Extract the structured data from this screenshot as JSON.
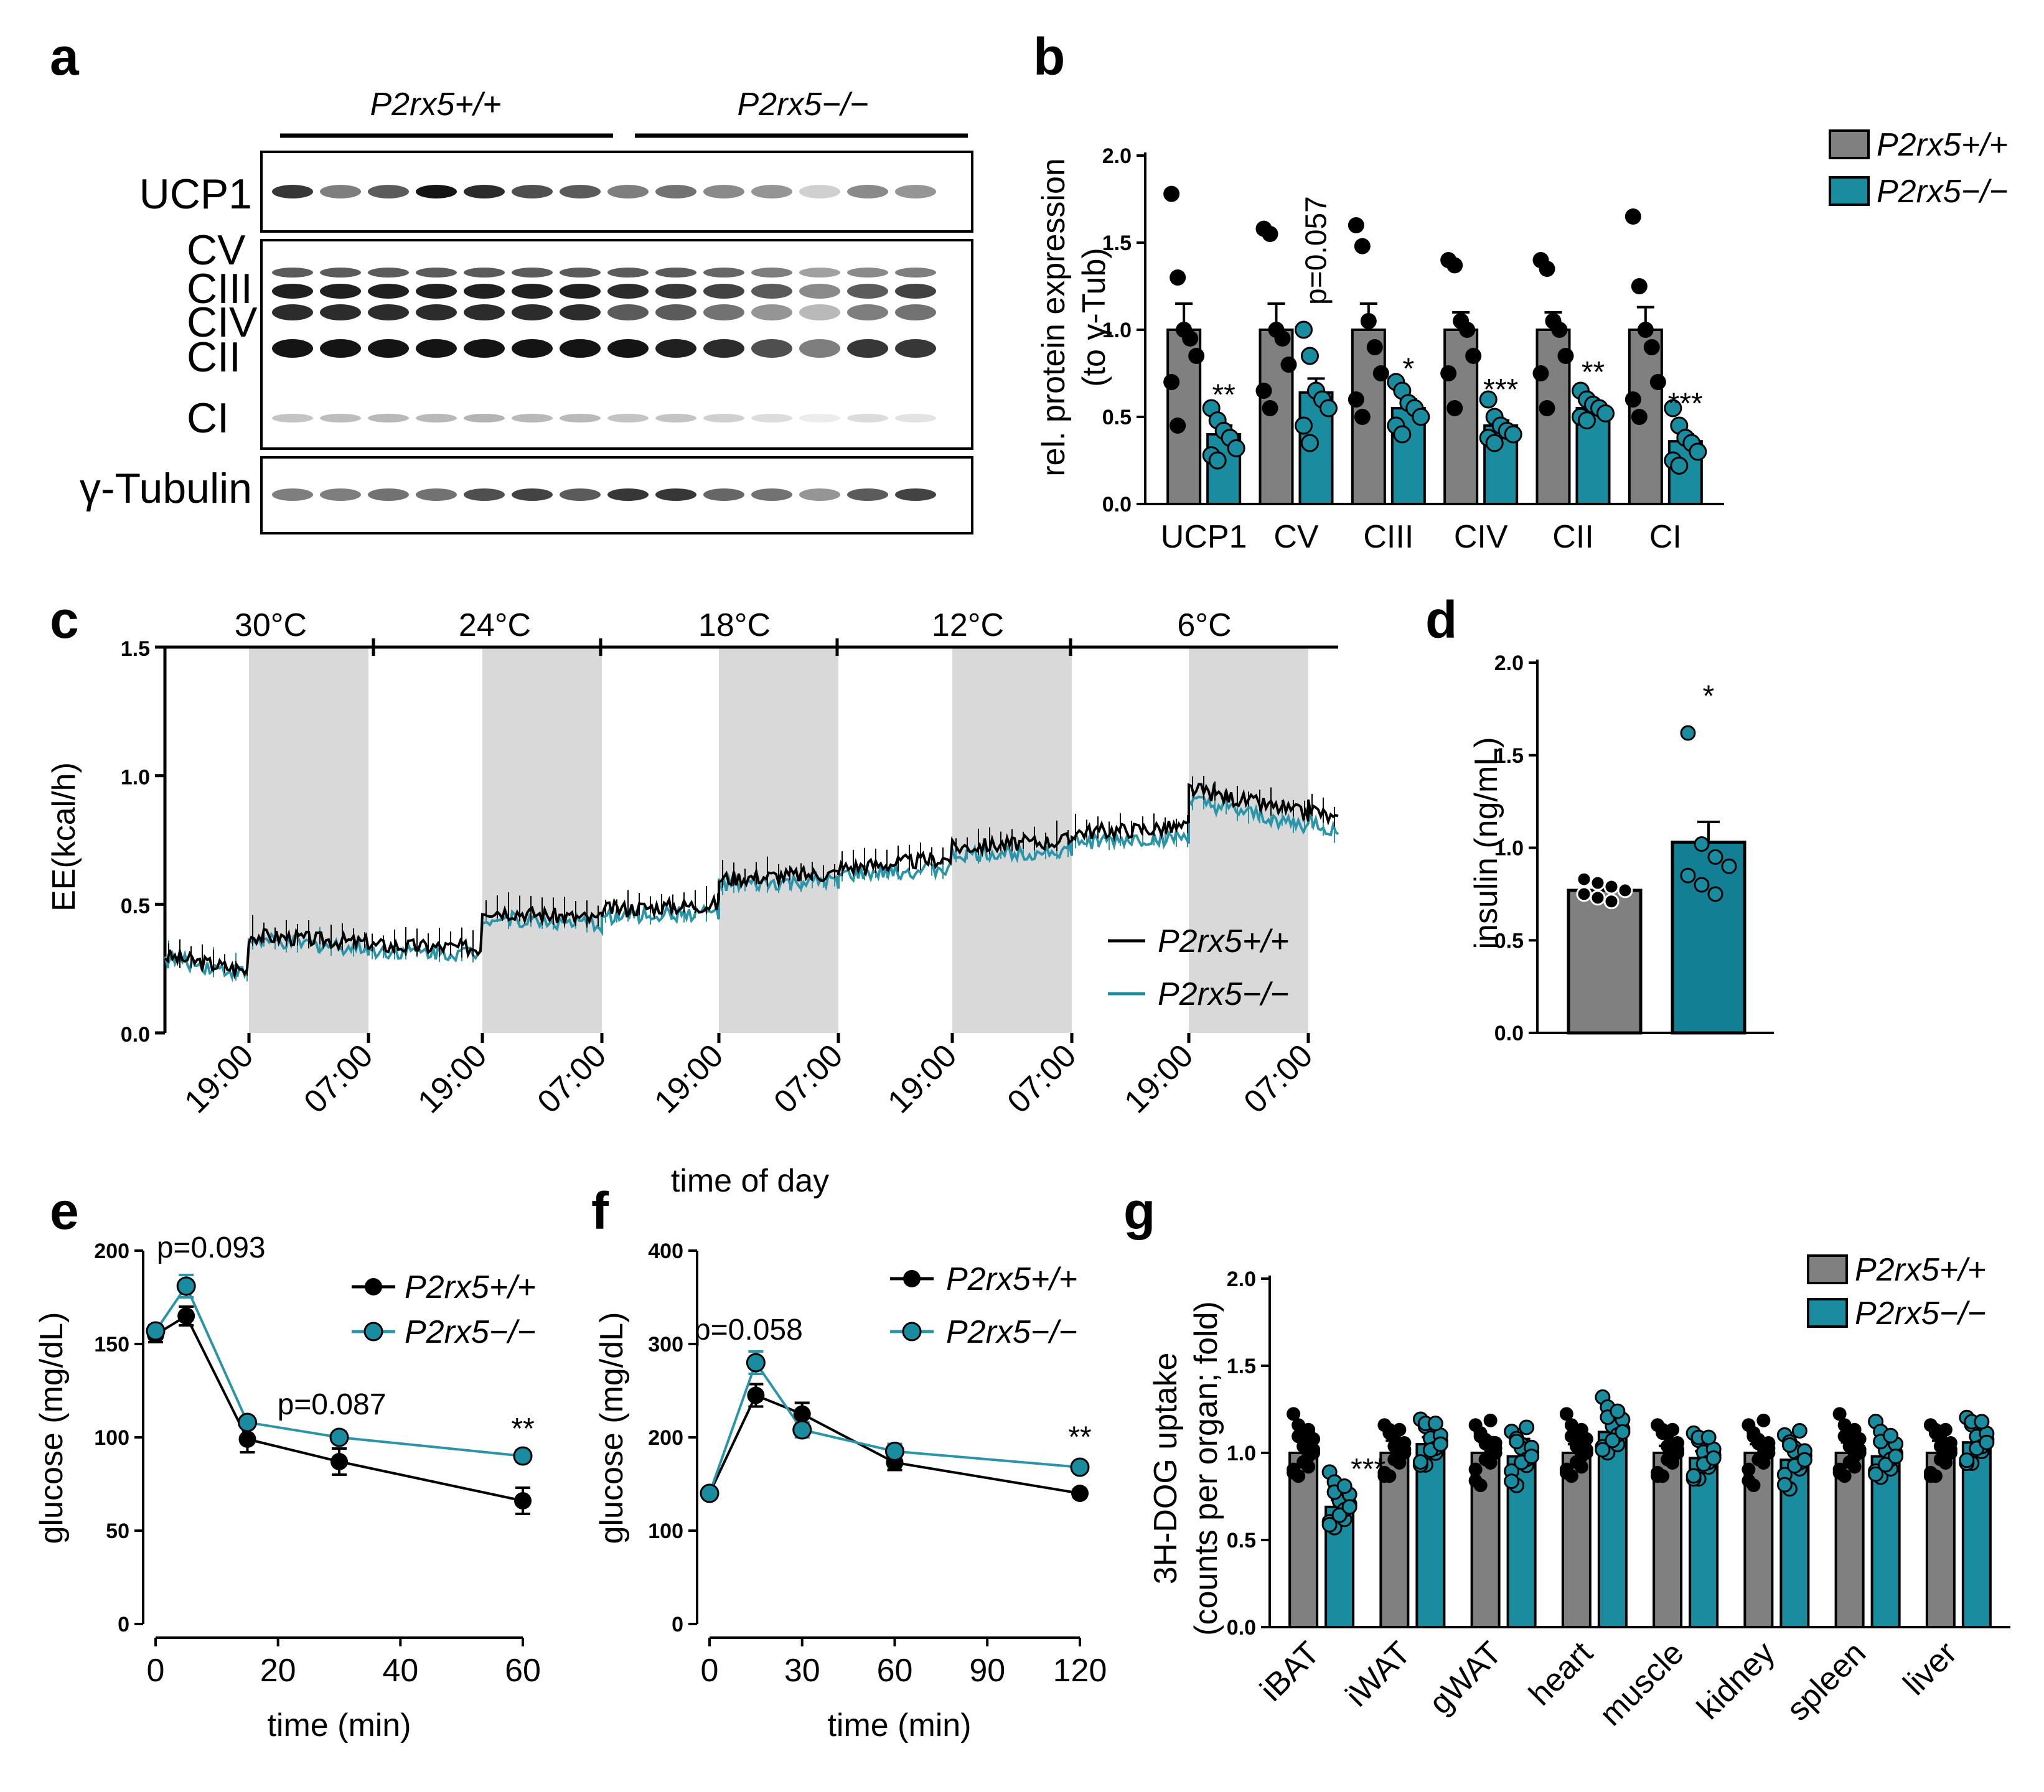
{
  "colors": {
    "wt": "#808080",
    "ko": "#1a8ca0",
    "ko_line": "#2a95a8",
    "black": "#000000",
    "shade": "#d9d9d9"
  },
  "panels": {
    "a": {
      "letter": "a",
      "group_wt": "P2rx5+/+",
      "group_ko": "P2rx5−/−",
      "labels": [
        "UCP1",
        "CV",
        "CIII",
        "CIV",
        "CII",
        "CI",
        "γ-Tubulin"
      ]
    },
    "b": {
      "letter": "b"
    },
    "c": {
      "letter": "c"
    },
    "d": {
      "letter": "d"
    },
    "e": {
      "letter": "e"
    },
    "f": {
      "letter": "f"
    },
    "g": {
      "letter": "g"
    }
  },
  "chart_data": [
    {
      "id": "b",
      "type": "bar",
      "categories": [
        "UCP1",
        "CV",
        "CIII",
        "CIV",
        "CII",
        "CI"
      ],
      "ylabel_line1": "rel. protein expression",
      "ylabel_line2": "(to γ-Tub)",
      "ylim": [
        0,
        2.0
      ],
      "yticks": [
        "0.0",
        "0.5",
        "1.0",
        "1.5",
        "2.0"
      ],
      "legend": [
        "P2rx5+/+",
        "P2rx5−/−"
      ],
      "series": [
        {
          "name": "P2rx5+/+",
          "values": [
            1.0,
            1.0,
            1.0,
            1.0,
            1.0,
            1.0
          ],
          "sem": [
            0.15,
            0.15,
            0.15,
            0.1,
            0.1,
            0.13
          ],
          "points": [
            [
              1.78,
              1.3,
              1.0,
              0.95,
              0.85,
              0.7,
              0.45
            ],
            [
              1.58,
              1.55,
              1.0,
              0.95,
              0.8,
              0.65,
              0.55
            ],
            [
              1.6,
              1.48,
              1.05,
              0.9,
              0.75,
              0.6,
              0.5
            ],
            [
              1.4,
              1.37,
              1.05,
              1.0,
              0.85,
              0.75,
              0.55
            ],
            [
              1.4,
              1.35,
              1.05,
              1.0,
              0.85,
              0.75,
              0.55
            ],
            [
              1.65,
              1.25,
              1.0,
              0.9,
              0.7,
              0.6,
              0.5
            ]
          ]
        },
        {
          "name": "P2rx5−/−",
          "values": [
            0.4,
            0.64,
            0.55,
            0.45,
            0.55,
            0.36
          ],
          "sem": [
            0.05,
            0.08,
            0.05,
            0.03,
            0.03,
            0.04
          ],
          "points": [
            [
              0.55,
              0.48,
              0.42,
              0.38,
              0.32,
              0.28,
              0.25
            ],
            [
              1.0,
              0.85,
              0.65,
              0.6,
              0.55,
              0.45,
              0.35
            ],
            [
              0.7,
              0.65,
              0.58,
              0.55,
              0.5,
              0.45,
              0.4
            ],
            [
              0.6,
              0.5,
              0.45,
              0.42,
              0.4,
              0.38,
              0.35
            ],
            [
              0.65,
              0.6,
              0.57,
              0.55,
              0.52,
              0.5,
              0.48
            ],
            [
              0.55,
              0.45,
              0.38,
              0.35,
              0.3,
              0.25,
              0.22
            ]
          ]
        }
      ],
      "annotations": [
        {
          "category": "UCP1",
          "text": "**"
        },
        {
          "category": "CV",
          "text": "p=0.057"
        },
        {
          "category": "CIII",
          "text": "*"
        },
        {
          "category": "CIV",
          "text": "***"
        },
        {
          "category": "CII",
          "text": "**"
        },
        {
          "category": "CI",
          "text": "***"
        }
      ]
    },
    {
      "id": "c",
      "type": "line",
      "xlabel": "time of day",
      "ylabel": "EE(kcal/h)",
      "ylim": [
        0,
        1.5
      ],
      "yticks": [
        "0.0",
        "0.5",
        "1.0",
        "1.5"
      ],
      "xtick_labels": [
        "19:00",
        "07:00",
        "19:00",
        "07:00",
        "19:00",
        "07:00",
        "19:00",
        "07:00",
        "19:00",
        "07:00"
      ],
      "temperatures": [
        "30°C",
        "24°C",
        "18°C",
        "12°C",
        "6°C"
      ],
      "dark_phases": 5,
      "legend": [
        "P2rx5+/+",
        "P2rx5−/−"
      ],
      "series": [
        {
          "name": "P2rx5+/+",
          "segment_means": [
            [
              0.3,
              0.24
            ],
            [
              0.38,
              0.35
            ],
            [
              0.34,
              0.33
            ],
            [
              0.48,
              0.44
            ],
            [
              0.48,
              0.5
            ],
            [
              0.6,
              0.62
            ],
            [
              0.64,
              0.68
            ],
            [
              0.72,
              0.75
            ],
            [
              0.78,
              0.8
            ],
            [
              0.95,
              0.85
            ],
            [
              0.88,
              0.82
            ]
          ]
        },
        {
          "name": "P2rx5−/−",
          "segment_means": [
            [
              0.29,
              0.23
            ],
            [
              0.36,
              0.33
            ],
            [
              0.32,
              0.31
            ],
            [
              0.45,
              0.42
            ],
            [
              0.45,
              0.47
            ],
            [
              0.57,
              0.59
            ],
            [
              0.61,
              0.64
            ],
            [
              0.69,
              0.71
            ],
            [
              0.74,
              0.76
            ],
            [
              0.9,
              0.8
            ],
            [
              0.83,
              0.77
            ]
          ]
        }
      ]
    },
    {
      "id": "d",
      "type": "bar",
      "categories": [
        "P2rx5+/+",
        "P2rx5−/−"
      ],
      "ylabel": "insulin (ng/mL)",
      "ylim": [
        0,
        2.0
      ],
      "yticks": [
        "0.0",
        "0.5",
        "1.0",
        "1.5",
        "2.0"
      ],
      "values": [
        0.77,
        1.03
      ],
      "sem": [
        0.02,
        0.11
      ],
      "points": [
        [
          0.83,
          0.81,
          0.79,
          0.77,
          0.75,
          0.73,
          0.71
        ],
        [
          1.62,
          1.02,
          0.95,
          0.9,
          0.85,
          0.8,
          0.75
        ]
      ],
      "annotation": "*"
    },
    {
      "id": "e",
      "type": "line",
      "xlabel": "time (min)",
      "ylabel": "glucose (mg/dL)",
      "xlim": [
        0,
        60
      ],
      "ylim": [
        0,
        200
      ],
      "xticks": [
        "0",
        "20",
        "40",
        "60"
      ],
      "yticks": [
        "0",
        "50",
        "100",
        "150",
        "200"
      ],
      "x": [
        0,
        5,
        15,
        30,
        60
      ],
      "legend": [
        "P2rx5+/+",
        "P2rx5−/−"
      ],
      "series": [
        {
          "name": "P2rx5+/+",
          "values": [
            155,
            165,
            99,
            87,
            66
          ],
          "sem": [
            4,
            5,
            7,
            7,
            7
          ]
        },
        {
          "name": "P2rx5−/−",
          "values": [
            157,
            181,
            108,
            100,
            90
          ],
          "sem": [
            3,
            6,
            3,
            3,
            3
          ]
        }
      ],
      "annotations": [
        {
          "text": "p=0.093",
          "x": 5
        },
        {
          "text": "p=0.087",
          "x": 30
        },
        {
          "text": "**",
          "x": 60
        }
      ]
    },
    {
      "id": "f",
      "type": "line",
      "xlabel": "time (min)",
      "ylabel": "glucose (mg/dL)",
      "xlim": [
        0,
        120
      ],
      "ylim": [
        0,
        400
      ],
      "xticks": [
        "0",
        "30",
        "60",
        "90",
        "120"
      ],
      "yticks": [
        "0",
        "100",
        "200",
        "300",
        "400"
      ],
      "x": [
        0,
        15,
        30,
        60,
        120
      ],
      "legend": [
        "P2rx5+/+",
        "P2rx5−/−"
      ],
      "series": [
        {
          "name": "P2rx5+/+",
          "values": [
            140,
            245,
            225,
            173,
            140
          ],
          "sem": [
            4,
            12,
            12,
            8,
            4
          ]
        },
        {
          "name": "P2rx5−/−",
          "values": [
            140,
            280,
            208,
            185,
            168
          ],
          "sem": [
            4,
            12,
            8,
            8,
            5
          ]
        }
      ],
      "annotations": [
        {
          "text": "p=0.058",
          "x": 15
        },
        {
          "text": "**",
          "x": 120
        }
      ]
    },
    {
      "id": "g",
      "type": "bar",
      "categories": [
        "iBAT",
        "iWAT",
        "gWAT",
        "heart",
        "muscle",
        "kidney",
        "spleen",
        "liver"
      ],
      "ylabel_line1": "3H-DOG uptake",
      "ylabel_line2": "(counts per organ; fold)",
      "ylim": [
        0,
        2.0
      ],
      "yticks": [
        "0.0",
        "0.5",
        "1.0",
        "1.5",
        "2.0"
      ],
      "legend": [
        "P2rx5+/+",
        "P2rx5−/−"
      ],
      "series": [
        {
          "name": "P2rx5+/+",
          "values": [
            1.0,
            1.0,
            1.0,
            1.0,
            1.0,
            1.0,
            1.0,
            1.0
          ],
          "sem": [
            0.07,
            0.07,
            0.09,
            0.05,
            0.04,
            0.05,
            0.06,
            0.07
          ]
        },
        {
          "name": "P2rx5−/−",
          "values": [
            0.69,
            1.05,
            0.98,
            1.12,
            0.97,
            0.96,
            0.98,
            1.06
          ],
          "sem": [
            0.04,
            0.04,
            0.1,
            0.06,
            0.04,
            0.05,
            0.05,
            0.07
          ]
        }
      ],
      "annotations": [
        {
          "category": "iBAT",
          "text": "***"
        }
      ]
    }
  ]
}
